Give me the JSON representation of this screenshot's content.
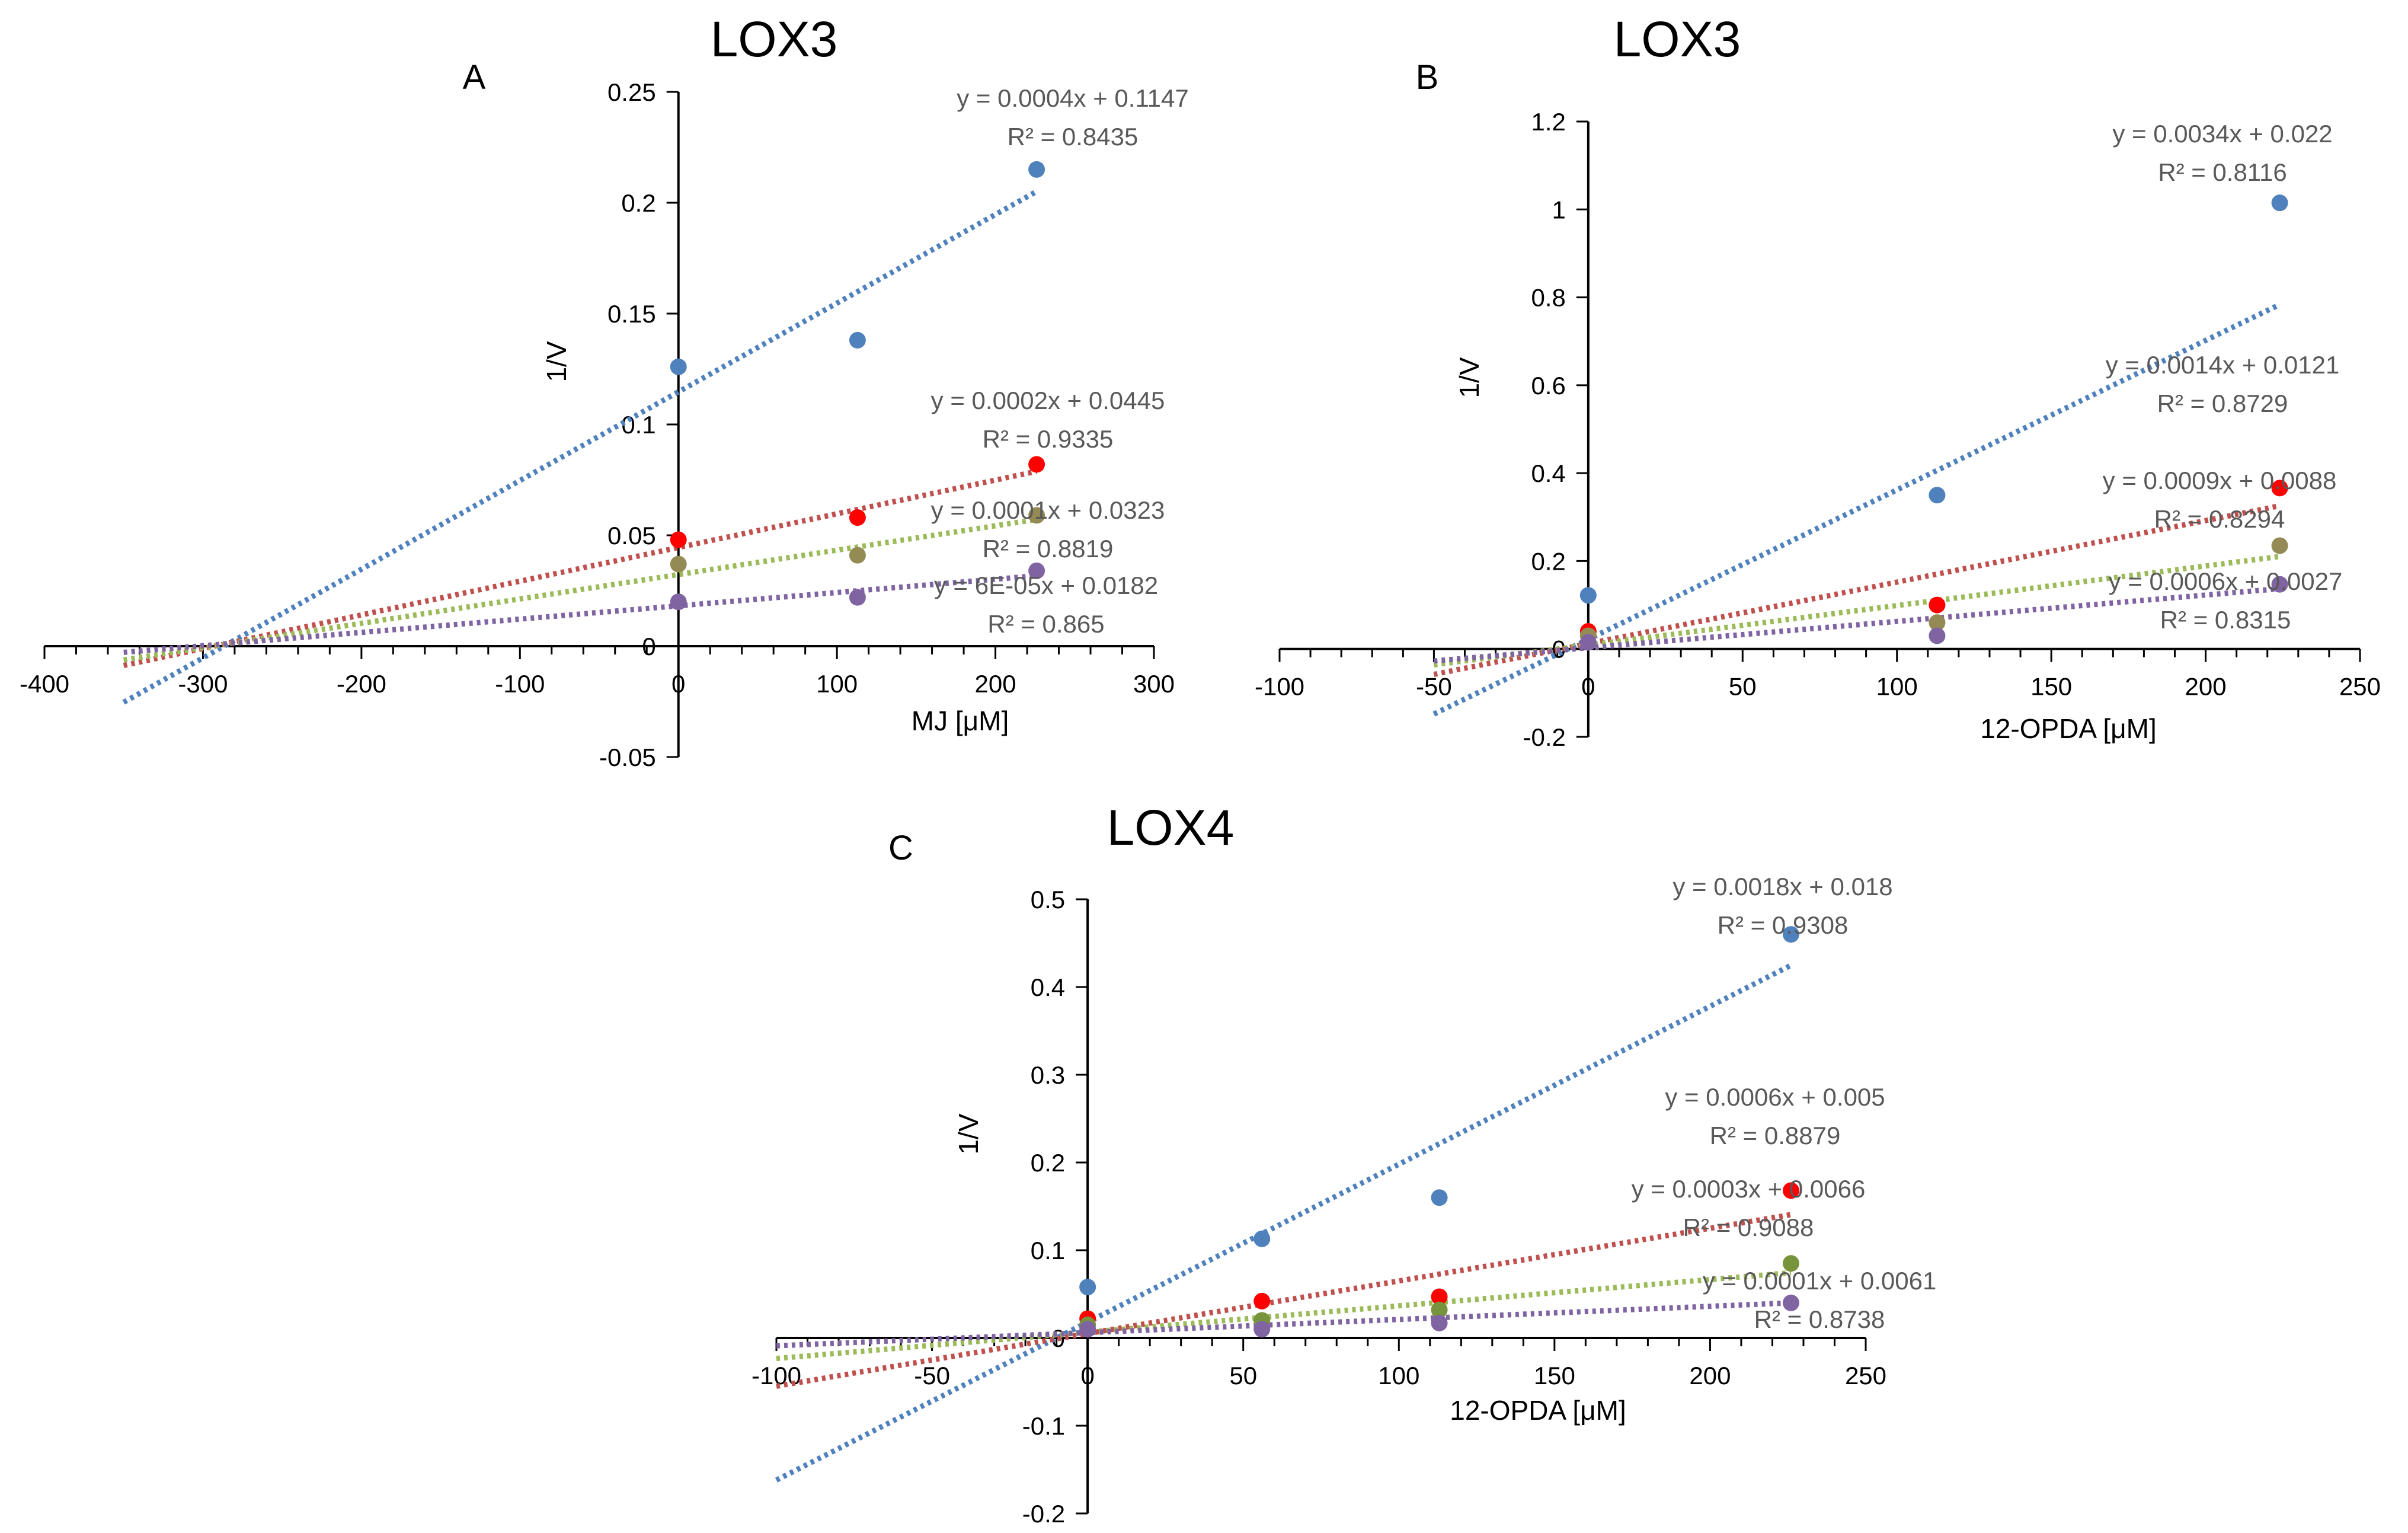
{
  "chart_data": [
    {
      "type": "scatter",
      "panel": "A",
      "title": "LOX3",
      "xlabel": "MJ [μM]",
      "ylabel": "1/V",
      "xlim": [
        -400,
        300
      ],
      "ylim": [
        -0.05,
        0.25
      ],
      "xticks": [
        -400,
        -300,
        -200,
        -100,
        0,
        100,
        200,
        300
      ],
      "xtick_labels": [
        "-400",
        "-300",
        "-200",
        "-100",
        "0",
        "100",
        "200",
        "300"
      ],
      "yticks": [
        -0.05,
        0,
        0.05,
        0.1,
        0.15,
        0.2,
        0.25
      ],
      "ytick_labels": [
        "-0.05",
        "0",
        "0.05",
        "0.1",
        "0.15",
        "0.2",
        "0.25"
      ],
      "trend_x_range": [
        -350,
        226
      ],
      "series": [
        {
          "name": "series-1",
          "color": "#4F81BD",
          "trend_color": "#4F81BD",
          "x": [
            0,
            113,
            226
          ],
          "y": [
            0.126,
            0.138,
            0.215
          ],
          "slope": 0.0004,
          "intercept": 0.1147,
          "equation": "y = 0.0004x + 0.1147",
          "r2": "R² = 0.8435"
        },
        {
          "name": "series-2",
          "color": "#FF0000",
          "trend_color": "#C0504D",
          "x": [
            0,
            113,
            226
          ],
          "y": [
            0.048,
            0.058,
            0.082
          ],
          "slope": 0.000152,
          "intercept": 0.0445,
          "equation": "y = 0.0002x + 0.0445",
          "r2": "R² = 0.9335"
        },
        {
          "name": "series-3",
          "color": "#948A54",
          "trend_color": "#9BBB59",
          "x": [
            0,
            113,
            226
          ],
          "y": [
            0.037,
            0.041,
            0.059
          ],
          "slope": 0.00011,
          "intercept": 0.0323,
          "equation": "y = 0.0001x + 0.0323",
          "r2": "R² = 0.8819"
        },
        {
          "name": "series-4",
          "color": "#8064A2",
          "trend_color": "#8064A2",
          "x": [
            0,
            113,
            226
          ],
          "y": [
            0.02,
            0.022,
            0.034
          ],
          "slope": 6e-05,
          "intercept": 0.0182,
          "equation": "y = 6E-05x + 0.0182",
          "r2": "R² = 0.865"
        }
      ]
    },
    {
      "type": "scatter",
      "panel": "B",
      "title": "LOX3",
      "xlabel": "12-OPDA [μM]",
      "ylabel": "1/V",
      "xlim": [
        -100,
        250
      ],
      "ylim": [
        -0.2,
        1.2
      ],
      "xticks": [
        -100,
        -50,
        0,
        50,
        100,
        150,
        200,
        250
      ],
      "xtick_labels": [
        "-100",
        "-50",
        "0",
        "50",
        "100",
        "150",
        "200",
        "250"
      ],
      "yticks": [
        -0.2,
        0,
        0.2,
        0.4,
        0.6,
        0.8,
        1,
        1.2
      ],
      "ytick_labels": [
        "-0.2",
        "0",
        "0.2",
        "0.4",
        "0.6",
        "0.8",
        "1",
        "1.2"
      ],
      "trend_x_range": [
        -50,
        224
      ],
      "series": [
        {
          "name": "series-1",
          "color": "#4F81BD",
          "trend_color": "#4F81BD",
          "x": [
            0,
            113,
            224
          ],
          "y": [
            0.122,
            0.35,
            1.015
          ],
          "slope": 0.0034,
          "intercept": 0.022,
          "equation": "y = 0.0034x + 0.022",
          "r2": "R² = 0.8116"
        },
        {
          "name": "series-2",
          "color": "#FF0000",
          "trend_color": "#C0504D",
          "x": [
            0,
            113,
            224
          ],
          "y": [
            0.04,
            0.1,
            0.366
          ],
          "slope": 0.0014,
          "intercept": 0.0121,
          "equation": "y = 0.0014x + 0.0121",
          "r2": "R² = 0.8729"
        },
        {
          "name": "series-3",
          "color": "#948A54",
          "trend_color": "#9BBB59",
          "x": [
            0,
            113,
            224
          ],
          "y": [
            0.03,
            0.06,
            0.235
          ],
          "slope": 0.0009,
          "intercept": 0.0088,
          "equation": "y = 0.0009x + 0.0088",
          "r2": "R² = 0.8294"
        },
        {
          "name": "series-4",
          "color": "#8064A2",
          "trend_color": "#8064A2",
          "x": [
            0,
            113,
            224
          ],
          "y": [
            0.015,
            0.03,
            0.147
          ],
          "slope": 0.0006,
          "intercept": 0.0027,
          "equation": "y = 0.0006x + 0.0027",
          "r2": "R² = 0.8315"
        }
      ]
    },
    {
      "type": "scatter",
      "panel": "C",
      "title": "LOX4",
      "xlabel": "12-OPDA [μM]",
      "ylabel": "1/V",
      "xlim": [
        -100,
        250
      ],
      "ylim": [
        -0.2,
        0.5
      ],
      "xticks": [
        -100,
        -50,
        0,
        50,
        100,
        150,
        200,
        250
      ],
      "xtick_labels": [
        "-100",
        "-50",
        "0",
        "50",
        "100",
        "150",
        "200",
        "250"
      ],
      "yticks": [
        -0.2,
        -0.1,
        0,
        0.1,
        0.2,
        0.3,
        0.4,
        0.5
      ],
      "ytick_labels": [
        "-0.2",
        "-0.1",
        "0",
        "0.1",
        "0.2",
        "0.3",
        "0.4",
        "0.5"
      ],
      "trend_x_range": [
        -100,
        226
      ],
      "series": [
        {
          "name": "series-1",
          "color": "#4F81BD",
          "trend_color": "#4F81BD",
          "x": [
            0,
            56,
            113,
            226
          ],
          "y": [
            0.058,
            0.113,
            0.16,
            0.46
          ],
          "slope": 0.0018,
          "intercept": 0.018,
          "equation": "y = 0.0018x + 0.018",
          "r2": "R² = 0.9308"
        },
        {
          "name": "series-2",
          "color": "#FF0000",
          "trend_color": "#C0504D",
          "x": [
            0,
            56,
            113,
            226
          ],
          "y": [
            0.022,
            0.042,
            0.047,
            0.168
          ],
          "slope": 0.0006,
          "intercept": 0.005,
          "equation": "y = 0.0006x + 0.005",
          "r2": "R² = 0.8879"
        },
        {
          "name": "series-3",
          "color": "#77933C",
          "trend_color": "#9BBB59",
          "x": [
            0,
            56,
            113,
            226
          ],
          "y": [
            0.015,
            0.02,
            0.032,
            0.085
          ],
          "slope": 0.0003,
          "intercept": 0.0066,
          "equation": "y = 0.0003x + 0.0066",
          "r2": "R² = 0.9088"
        },
        {
          "name": "series-4",
          "color": "#8064A2",
          "trend_color": "#8064A2",
          "x": [
            0,
            56,
            113,
            226
          ],
          "y": [
            0.01,
            0.01,
            0.017,
            0.04
          ],
          "slope": 0.00015,
          "intercept": 0.0061,
          "equation": "y = 0.0001x + 0.0061",
          "r2": "R² = 0.8738"
        }
      ]
    }
  ]
}
